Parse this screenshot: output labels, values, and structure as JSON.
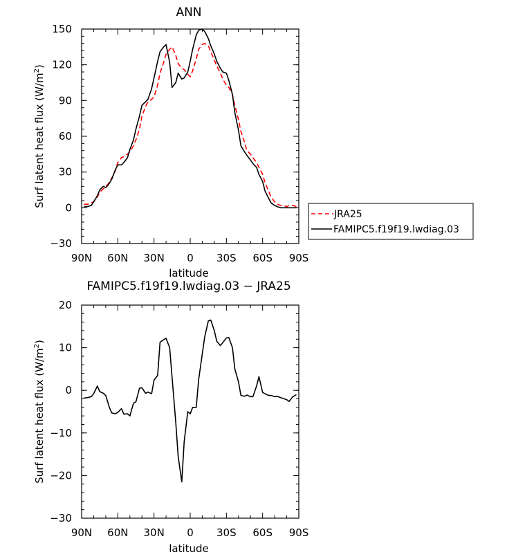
{
  "chart_data": [
    {
      "type": "line",
      "title": "ANN",
      "xlabel": "latitude",
      "ylabel": "Surf latent heat flux (W/m²)",
      "ylabel_main": "Surf latent heat flux (W/m",
      "ylabel_sup": "2",
      "ylabel_end": ")",
      "xlim": [
        90,
        -90
      ],
      "ylim": [
        -30,
        150
      ],
      "xticks": [
        90,
        60,
        30,
        0,
        -30,
        -60,
        -90
      ],
      "xticklabels": [
        "90N",
        "60N",
        "30N",
        "0",
        "30S",
        "60S",
        "90S"
      ],
      "yticks": [
        -30,
        0,
        30,
        60,
        90,
        120,
        150
      ],
      "yticklabels": [
        "−30",
        "0",
        "30",
        "60",
        "90",
        "120",
        "150"
      ],
      "legend_position": "right",
      "series": [
        {
          "name": "JRA25",
          "color": "#ff0000",
          "dash": "dashed",
          "x": [
            88,
            85,
            80,
            77,
            75,
            72,
            70,
            68,
            65,
            62,
            60,
            57,
            55,
            52,
            50,
            47,
            45,
            42,
            40,
            37,
            35,
            32,
            30,
            27,
            25,
            22,
            20,
            17,
            15,
            12,
            10,
            7,
            5,
            2,
            0,
            -2,
            -5,
            -7,
            -10,
            -12,
            -15,
            -17,
            -20,
            -22,
            -25,
            -27,
            -30,
            -32,
            -35,
            -37,
            -40,
            -42,
            -45,
            -47,
            -50,
            -52,
            -55,
            -57,
            -60,
            -62,
            -65,
            -67,
            -70,
            -72,
            -75,
            -77,
            -80,
            -82,
            -85,
            -88
          ],
          "y": [
            3,
            3,
            5,
            9,
            13,
            16,
            18,
            20,
            25,
            31,
            38,
            42,
            43,
            45,
            47,
            52,
            57,
            66,
            77,
            85,
            89,
            91,
            93,
            103,
            113,
            122,
            129,
            133,
            135,
            128,
            121,
            117,
            116,
            112,
            110,
            115,
            125,
            133,
            137,
            138,
            136,
            131,
            124,
            119,
            113,
            108,
            103,
            101,
            95,
            86,
            74,
            64,
            55,
            48,
            45,
            42,
            38,
            34,
            28,
            21,
            14,
            9,
            5,
            3,
            2,
            2,
            1,
            2,
            2,
            1
          ]
        },
        {
          "name": "FAMIPC5.f19f19.lwdiag.03",
          "color": "#000000",
          "dash": "solid",
          "x": [
            88,
            85,
            82,
            80,
            77,
            75,
            72,
            70,
            68,
            65,
            62,
            60,
            57,
            55,
            52,
            50,
            47,
            45,
            42,
            40,
            37,
            35,
            32,
            30,
            27,
            25,
            22,
            20,
            17,
            15,
            12,
            10,
            7,
            5,
            2,
            0,
            -2,
            -5,
            -7,
            -10,
            -12,
            -15,
            -17,
            -20,
            -22,
            -25,
            -27,
            -30,
            -32,
            -35,
            -37,
            -40,
            -42,
            -45,
            -47,
            -50,
            -52,
            -55,
            -57,
            -60,
            -62,
            -65,
            -67,
            -70,
            -72,
            -75,
            -77,
            -80,
            -82,
            -85,
            -88
          ],
          "y": [
            1,
            1,
            2,
            5,
            10,
            15,
            18,
            17,
            19,
            24,
            32,
            36,
            36,
            38,
            42,
            49,
            57,
            66,
            77,
            86,
            89,
            91,
            100,
            109,
            123,
            131,
            135,
            137,
            122,
            101,
            105,
            113,
            108,
            109,
            114,
            123,
            133,
            145,
            149,
            150,
            148,
            142,
            136,
            129,
            123,
            117,
            114,
            113,
            107,
            95,
            80,
            65,
            52,
            47,
            44,
            40,
            37,
            34,
            28,
            22,
            14,
            8,
            4,
            2,
            1,
            0,
            0,
            0,
            0,
            0,
            0
          ]
        }
      ]
    },
    {
      "type": "line",
      "title": "FAMIPC5.f19f19.lwdiag.03 − JRA25",
      "xlabel": "latitude",
      "ylabel": "Surf latent heat flux (W/m²)",
      "ylabel_main": "Surf latent heat flux (W/m",
      "ylabel_sup": "2",
      "ylabel_end": ")",
      "xlim": [
        90,
        -90
      ],
      "ylim": [
        -30,
        20
      ],
      "xticks": [
        90,
        60,
        30,
        0,
        -30,
        -60,
        -90
      ],
      "xticklabels": [
        "90N",
        "60N",
        "30N",
        "0",
        "30S",
        "60S",
        "90S"
      ],
      "yticks": [
        -30,
        -20,
        -10,
        0,
        10,
        20
      ],
      "yticklabels": [
        "−30",
        "−20",
        "−10",
        "0",
        "10",
        "20"
      ],
      "series": [
        {
          "name": "",
          "color": "#000000",
          "dash": "solid",
          "x": [
            88,
            85,
            82,
            80,
            77,
            75,
            72,
            70,
            67,
            65,
            62,
            60,
            57,
            55,
            52,
            50,
            47,
            45,
            42,
            40,
            37,
            35,
            32,
            30,
            27,
            25,
            22,
            20,
            17,
            15,
            12,
            10,
            7,
            5,
            2,
            0,
            -2,
            -5,
            -7,
            -10,
            -12,
            -15,
            -17,
            -20,
            -22,
            -25,
            -27,
            -30,
            -32,
            -35,
            -37,
            -40,
            -42,
            -45,
            -47,
            -50,
            -52,
            -55,
            -57,
            -60,
            -62,
            -65,
            -67,
            -70,
            -72,
            -75,
            -77,
            -80,
            -82,
            -85,
            -88
          ],
          "y": [
            -1.8,
            -1.7,
            -1.5,
            -0.8,
            1.0,
            -0.3,
            -0.7,
            -1.2,
            -4.0,
            -5.3,
            -5.5,
            -5.2,
            -4.3,
            -5.6,
            -5.5,
            -6.0,
            -3.0,
            -2.7,
            0.5,
            0.6,
            -0.7,
            -0.4,
            -0.8,
            2.4,
            3.5,
            11.3,
            11.9,
            12.2,
            10.0,
            3.0,
            -7.5,
            -15.5,
            -21.5,
            -12.0,
            -5.0,
            -5.5,
            -4.0,
            -4.0,
            2.5,
            8.5,
            12.5,
            16.3,
            16.5,
            14.0,
            11.5,
            10.5,
            11.2,
            12.3,
            12.4,
            10.0,
            5.0,
            2.0,
            -1.2,
            -1.4,
            -1.1,
            -1.5,
            -1.5,
            1.0,
            3.2,
            -0.5,
            -0.8,
            -1.2,
            -1.2,
            -1.5,
            -1.4,
            -1.7,
            -1.9,
            -2.2,
            -2.6,
            -1.5,
            -1.0
          ]
        }
      ]
    }
  ]
}
